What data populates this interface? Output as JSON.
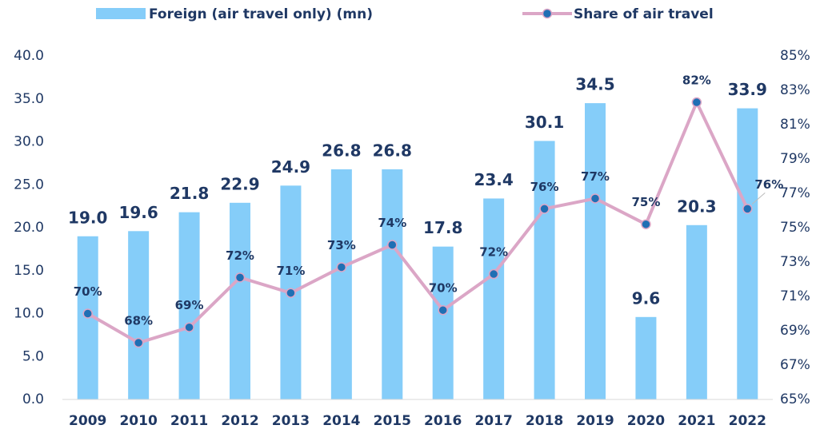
{
  "chart_data": {
    "type": "bar_line",
    "categories": [
      "2009",
      "2010",
      "2011",
      "2012",
      "2013",
      "2014",
      "2015",
      "2016",
      "2017",
      "2018",
      "2019",
      "2020",
      "2021",
      "2022"
    ],
    "series": [
      {
        "name": "Foreign (air travel only) (mn)",
        "type": "bar",
        "color": "#85cdf9",
        "values": [
          19.0,
          19.6,
          21.8,
          22.9,
          24.9,
          26.8,
          26.8,
          17.8,
          23.4,
          30.1,
          34.5,
          9.6,
          20.3,
          33.9
        ],
        "value_labels": [
          "19.0",
          "19.6",
          "21.8",
          "22.9",
          "24.9",
          "26.8",
          "26.8",
          "17.8",
          "23.4",
          "30.1",
          "34.5",
          "9.6",
          "20.3",
          "33.9"
        ]
      },
      {
        "name": "Share of air travel",
        "type": "line",
        "axis": "y2",
        "color": "#dba6c6",
        "marker_color": "#1f6fb4",
        "values": [
          70.0,
          68.3,
          69.2,
          72.1,
          71.2,
          72.7,
          74.0,
          70.2,
          72.3,
          76.1,
          76.7,
          75.2,
          82.3,
          76.1
        ],
        "value_labels": [
          "70%",
          "68%",
          "69%",
          "72%",
          "71%",
          "73%",
          "74%",
          "70%",
          "72%",
          "76%",
          "77%",
          "75%",
          "82%",
          "76%"
        ]
      }
    ],
    "ylim": [
      0,
      40
    ],
    "yticks": [
      {
        "value": 0,
        "label": "0.0"
      },
      {
        "value": 5,
        "label": "5.0"
      },
      {
        "value": 10,
        "label": "10.0"
      },
      {
        "value": 15,
        "label": "15.0"
      },
      {
        "value": 20,
        "label": "20.0"
      },
      {
        "value": 25,
        "label": "25.0"
      },
      {
        "value": 30,
        "label": "30.0"
      },
      {
        "value": 35,
        "label": "35.0"
      },
      {
        "value": 40,
        "label": "40.0"
      }
    ],
    "y2lim": [
      65,
      85
    ],
    "y2ticks": [
      {
        "value": 65,
        "label": "65%"
      },
      {
        "value": 67,
        "label": "67%"
      },
      {
        "value": 69,
        "label": "69%"
      },
      {
        "value": 71,
        "label": "71%"
      },
      {
        "value": 73,
        "label": "73%"
      },
      {
        "value": 75,
        "label": "75%"
      },
      {
        "value": 77,
        "label": "77%"
      },
      {
        "value": 79,
        "label": "79%"
      },
      {
        "value": 81,
        "label": "81%"
      },
      {
        "value": 83,
        "label": "83%"
      },
      {
        "value": 85,
        "label": "85%"
      }
    ],
    "legend": "top"
  }
}
